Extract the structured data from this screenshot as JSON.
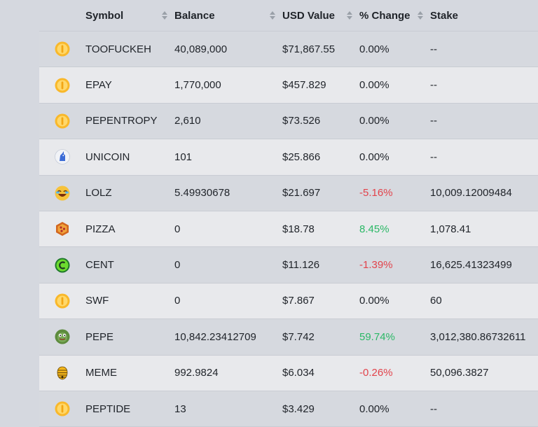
{
  "header": {
    "symbol": "Symbol",
    "balance": "Balance",
    "usd_value": "USD Value",
    "change": "% Change",
    "stake": "Stake"
  },
  "rows": [
    {
      "icon": "coin-icon",
      "symbol": "TOOFUCKEH",
      "balance": "40,089,000",
      "usd": "$71,867.55",
      "change": "0.00%",
      "trend": "neu",
      "stake": "--"
    },
    {
      "icon": "coin-icon",
      "symbol": "EPAY",
      "balance": "1,770,000",
      "usd": "$457.829",
      "change": "0.00%",
      "trend": "neu",
      "stake": "--"
    },
    {
      "icon": "coin-icon",
      "symbol": "PEPENTROPY",
      "balance": "2,610",
      "usd": "$73.526",
      "change": "0.00%",
      "trend": "neu",
      "stake": "--"
    },
    {
      "icon": "unicorn-icon",
      "symbol": "UNICOIN",
      "balance": "101",
      "usd": "$25.866",
      "change": "0.00%",
      "trend": "neu",
      "stake": "--"
    },
    {
      "icon": "laughing-face-icon",
      "symbol": "LOLZ",
      "balance": "5.49930678",
      "usd": "$21.697",
      "change": "-5.16%",
      "trend": "neg",
      "stake": "10,009.12009484"
    },
    {
      "icon": "pizza-icon",
      "symbol": "PIZZA",
      "balance": "0",
      "usd": "$18.78",
      "change": "8.45%",
      "trend": "pos",
      "stake": "1,078.41"
    },
    {
      "icon": "cent-icon",
      "symbol": "CENT",
      "balance": "0",
      "usd": "$11.126",
      "change": "-1.39%",
      "trend": "neg",
      "stake": "16,625.41323499"
    },
    {
      "icon": "coin-icon",
      "symbol": "SWF",
      "balance": "0",
      "usd": "$7.867",
      "change": "0.00%",
      "trend": "neu",
      "stake": "60"
    },
    {
      "icon": "frog-icon",
      "symbol": "PEPE",
      "balance": "10,842.23412709",
      "usd": "$7.742",
      "change": "59.74%",
      "trend": "pos",
      "stake": "3,012,380.86732611"
    },
    {
      "icon": "beehive-icon",
      "symbol": "MEME",
      "balance": "992.9824",
      "usd": "$6.034",
      "change": "-0.26%",
      "trend": "neg",
      "stake": "50,096.3827"
    },
    {
      "icon": "coin-icon",
      "symbol": "PEPTIDE",
      "balance": "13",
      "usd": "$3.429",
      "change": "0.00%",
      "trend": "neu",
      "stake": "--"
    }
  ],
  "colors": {
    "negative": "#e2434b",
    "positive": "#2bb866",
    "row_odd": "#d6d9df",
    "row_even": "#e8e9ec"
  }
}
